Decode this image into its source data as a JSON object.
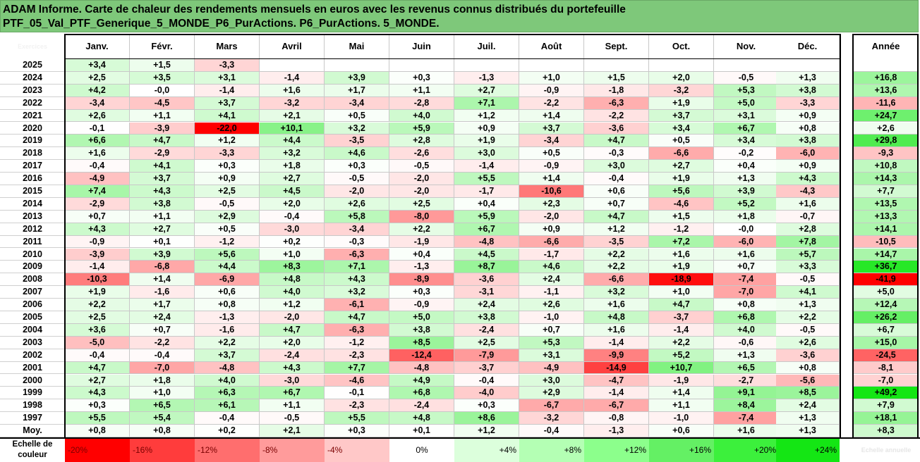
{
  "chart_data": {
    "type": "heatmap",
    "title_line1": "ADAM Informe. Carte de chaleur des rendements mensuels en euros avec les revenus connus distribués du portefeuille",
    "title_line2": "PTF_05_Val_PTF_Generique_5_MONDE_P6_PurActions. P6_PurActions. 5_MONDE.",
    "corner_label": "Exercices",
    "months": [
      "Janv.",
      "Févr.",
      "Mars",
      "Avril",
      "Mai",
      "Juin",
      "Juil.",
      "Août",
      "Sept.",
      "Oct.",
      "Nov.",
      "Déc."
    ],
    "year_header": "Année",
    "rows": [
      {
        "year": "2025",
        "months": [
          "+3,4",
          "+1,5",
          "-3,3",
          null,
          null,
          null,
          null,
          null,
          null,
          null,
          null,
          null
        ],
        "annual": null
      },
      {
        "year": "2024",
        "months": [
          "+2,5",
          "+3,5",
          "+3,1",
          "-1,4",
          "+3,9",
          "+0,3",
          "-1,3",
          "+1,0",
          "+1,5",
          "+2,0",
          "-0,5",
          "+1,3"
        ],
        "annual": "+16,8"
      },
      {
        "year": "2023",
        "months": [
          "+4,2",
          "-0,0",
          "-1,4",
          "+1,6",
          "+1,7",
          "+1,1",
          "+2,7",
          "-0,9",
          "-1,8",
          "-3,2",
          "+5,3",
          "+3,8"
        ],
        "annual": "+13,6"
      },
      {
        "year": "2022",
        "months": [
          "-3,4",
          "-4,5",
          "+3,7",
          "-3,2",
          "-3,4",
          "-2,8",
          "+7,1",
          "-2,2",
          "-6,3",
          "+1,9",
          "+5,0",
          "-3,3"
        ],
        "annual": "-11,6"
      },
      {
        "year": "2021",
        "months": [
          "+2,6",
          "+1,1",
          "+4,1",
          "+2,1",
          "+0,5",
          "+4,0",
          "+1,2",
          "+1,4",
          "-2,2",
          "+3,7",
          "+3,1",
          "+0,9"
        ],
        "annual": "+24,7"
      },
      {
        "year": "2020",
        "months": [
          "-0,1",
          "-3,9",
          "-22,0",
          "+10,1",
          "+3,2",
          "+5,9",
          "+0,9",
          "+3,7",
          "-3,6",
          "+3,4",
          "+6,7",
          "+0,8"
        ],
        "annual": "+2,6"
      },
      {
        "year": "2019",
        "months": [
          "+6,6",
          "+4,7",
          "+1,2",
          "+4,4",
          "-3,5",
          "+2,8",
          "+1,9",
          "-3,4",
          "+4,7",
          "+0,5",
          "+3,4",
          "+3,8"
        ],
        "annual": "+29,8"
      },
      {
        "year": "2018",
        "months": [
          "+1,6",
          "-2,9",
          "-3,3",
          "+3,2",
          "+4,6",
          "-2,6",
          "+3,0",
          "+0,5",
          "-0,3",
          "-6,6",
          "-0,2",
          "-6,0"
        ],
        "annual": "-9,3"
      },
      {
        "year": "2017",
        "months": [
          "-0,4",
          "+4,1",
          "+0,3",
          "+1,8",
          "+0,3",
          "-0,5",
          "-1,4",
          "-0,9",
          "+3,0",
          "+2,7",
          "+0,4",
          "+0,9"
        ],
        "annual": "+10,8"
      },
      {
        "year": "2016",
        "months": [
          "-4,9",
          "+3,7",
          "+0,9",
          "+2,7",
          "-0,5",
          "-2,0",
          "+5,5",
          "+1,4",
          "-0,4",
          "+1,9",
          "+1,3",
          "+4,3"
        ],
        "annual": "+14,3"
      },
      {
        "year": "2015",
        "months": [
          "+7,4",
          "+4,3",
          "+2,5",
          "+4,5",
          "-2,0",
          "-2,0",
          "-1,7",
          "-10,6",
          "+0,6",
          "+5,6",
          "+3,9",
          "-4,3"
        ],
        "annual": "+7,7"
      },
      {
        "year": "2014",
        "months": [
          "-2,9",
          "+3,8",
          "-0,5",
          "+2,0",
          "+2,6",
          "+2,5",
          "+0,4",
          "+2,3",
          "+0,7",
          "-4,6",
          "+5,2",
          "+1,6"
        ],
        "annual": "+13,5"
      },
      {
        "year": "2013",
        "months": [
          "+0,7",
          "+1,1",
          "+2,9",
          "-0,4",
          "+5,8",
          "-8,0",
          "+5,9",
          "-2,0",
          "+4,7",
          "+1,5",
          "+1,8",
          "-0,7"
        ],
        "annual": "+13,3"
      },
      {
        "year": "2012",
        "months": [
          "+4,3",
          "+2,7",
          "+0,5",
          "-3,0",
          "-3,4",
          "+2,2",
          "+6,7",
          "+0,9",
          "+1,2",
          "-1,2",
          "-0,0",
          "+2,8"
        ],
        "annual": "+14,1"
      },
      {
        "year": "2011",
        "months": [
          "-0,9",
          "+0,1",
          "-1,2",
          "+0,2",
          "-0,3",
          "-1,9",
          "-4,8",
          "-6,6",
          "-3,5",
          "+7,2",
          "-6,0",
          "+7,8"
        ],
        "annual": "-10,5"
      },
      {
        "year": "2010",
        "months": [
          "-3,9",
          "+3,9",
          "+5,6",
          "+1,0",
          "-6,3",
          "+0,4",
          "+4,5",
          "-1,7",
          "+2,2",
          "+1,6",
          "+1,6",
          "+5,7"
        ],
        "annual": "+14,7"
      },
      {
        "year": "2009",
        "months": [
          "-1,4",
          "-6,8",
          "+4,4",
          "+8,3",
          "+7,1",
          "-1,3",
          "+8,7",
          "+4,6",
          "+2,2",
          "+1,9",
          "+0,7",
          "+3,3"
        ],
        "annual": "+36,7"
      },
      {
        "year": "2008",
        "months": [
          "-10,3",
          "+1,4",
          "-6,9",
          "+4,8",
          "+4,3",
          "-8,9",
          "-3,6",
          "+2,4",
          "-6,6",
          "-18,9",
          "-7,4",
          "-0,5"
        ],
        "annual": "-41,9"
      },
      {
        "year": "2007",
        "months": [
          "+1,9",
          "-1,6",
          "+0,6",
          "+4,0",
          "+3,2",
          "+0,3",
          "-3,1",
          "-1,1",
          "+3,2",
          "+1,0",
          "-7,0",
          "+4,1"
        ],
        "annual": "+5,0"
      },
      {
        "year": "2006",
        "months": [
          "+2,2",
          "+1,7",
          "+0,8",
          "+1,2",
          "-6,1",
          "-0,9",
          "+2,4",
          "+2,6",
          "+1,6",
          "+4,7",
          "+0,8",
          "+1,3"
        ],
        "annual": "+12,4"
      },
      {
        "year": "2005",
        "months": [
          "+2,5",
          "+2,4",
          "-1,3",
          "-2,0",
          "+4,7",
          "+5,0",
          "+3,8",
          "-1,0",
          "+4,8",
          "-3,7",
          "+6,8",
          "+2,2"
        ],
        "annual": "+26,2"
      },
      {
        "year": "2004",
        "months": [
          "+3,6",
          "+0,7",
          "-1,6",
          "+4,7",
          "-6,3",
          "+3,8",
          "-2,4",
          "+0,7",
          "+1,6",
          "-1,4",
          "+4,0",
          "-0,5"
        ],
        "annual": "+6,7"
      },
      {
        "year": "2003",
        "months": [
          "-5,0",
          "-2,2",
          "+2,2",
          "+2,0",
          "-1,2",
          "+8,5",
          "+2,5",
          "+5,3",
          "-1,4",
          "+2,2",
          "-0,6",
          "+2,6"
        ],
        "annual": "+15,0"
      },
      {
        "year": "2002",
        "months": [
          "-0,4",
          "-0,4",
          "+3,7",
          "-2,4",
          "-2,3",
          "-12,4",
          "-7,9",
          "+3,1",
          "-9,9",
          "+5,2",
          "+1,3",
          "-3,6"
        ],
        "annual": "-24,5"
      },
      {
        "year": "2001",
        "months": [
          "+4,7",
          "-7,0",
          "-4,8",
          "+4,3",
          "+7,7",
          "-4,8",
          "-3,7",
          "-4,9",
          "-14,9",
          "+10,7",
          "+6,5",
          "+0,8"
        ],
        "annual": "-8,1"
      },
      {
        "year": "2000",
        "months": [
          "+2,7",
          "+1,8",
          "+4,0",
          "-3,0",
          "-4,6",
          "+4,9",
          "-0,4",
          "+3,0",
          "-4,7",
          "-1,9",
          "-2,7",
          "-5,6"
        ],
        "annual": "-7,0"
      },
      {
        "year": "1999",
        "months": [
          "+4,3",
          "+1,0",
          "+6,3",
          "+6,7",
          "-0,1",
          "+6,8",
          "-4,0",
          "+2,9",
          "-1,4",
          "+1,4",
          "+9,1",
          "+8,5"
        ],
        "annual": "+49,2"
      },
      {
        "year": "1998",
        "months": [
          "+0,3",
          "+6,5",
          "+6,1",
          "+1,1",
          "-2,3",
          "-2,4",
          "+0,3",
          "-6,7",
          "-6,7",
          "+1,1",
          "+8,4",
          "+2,4"
        ],
        "annual": "+7,9"
      },
      {
        "year": "1997",
        "months": [
          "+5,5",
          "+5,4",
          "-0,4",
          "-0,5",
          "+5,5",
          "+4,8",
          "+8,6",
          "-3,2",
          "-0,8",
          "-1,0",
          "-7,4",
          "+1,3"
        ],
        "annual": "+18,1"
      }
    ],
    "average": {
      "label": "Moy.",
      "months": [
        "+0,8",
        "+0,8",
        "+0,2",
        "+2,1",
        "+0,3",
        "+0,1",
        "+1,2",
        "-0,4",
        "-1,3",
        "+0,6",
        "+1,6",
        "+1,3"
      ],
      "annual": "+8,3"
    },
    "scale": {
      "label_line1": "Echelle de",
      "label_line2": "couleur",
      "steps": [
        "-20%",
        "-16%",
        "-12%",
        "-8%",
        "-4%",
        "0%",
        "+4%",
        "+8%",
        "+12%",
        "+16%",
        "+20%",
        "+24%"
      ],
      "extra": "Echelle annuelle",
      "colors": [
        "#ff0000",
        "#ff3c3c",
        "#ff6e6e",
        "#ff9b9b",
        "#ffc8c8",
        "#ffffff",
        "#dcffdc",
        "#b4ffb4",
        "#8cff8c",
        "#64f064",
        "#3cf03c",
        "#14e614"
      ]
    },
    "colors": {
      "negative_max": "#ff0000",
      "positive_max": "#14e614",
      "neutral": "#ffffff",
      "title_bar": "#7ec87a"
    }
  }
}
